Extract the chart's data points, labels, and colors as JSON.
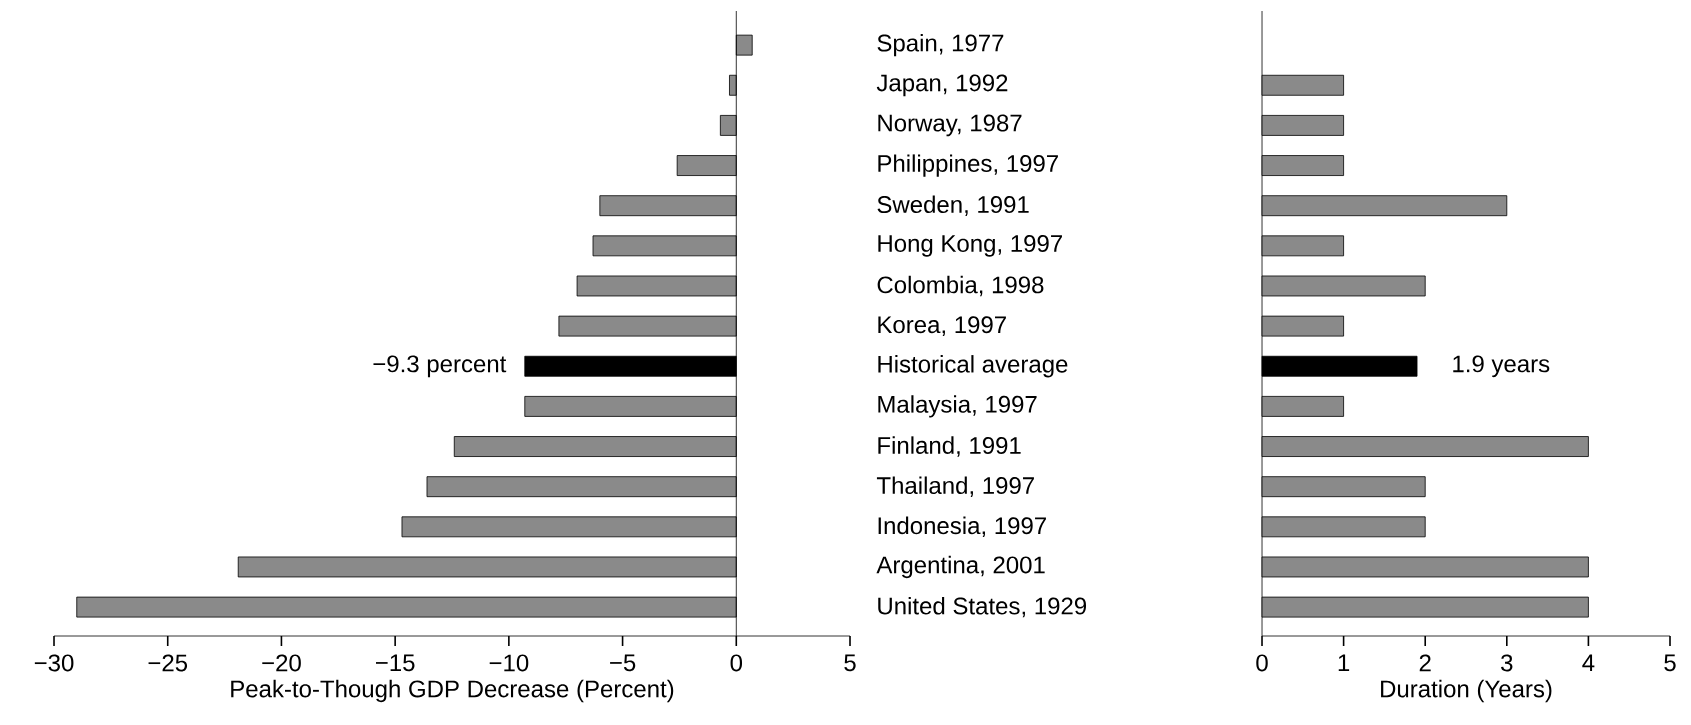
{
  "chart_data": [
    {
      "type": "bar",
      "orientation": "horizontal",
      "xlabel": "Peak-to-Though GDP Decrease (Percent)",
      "categories": [
        "Spain, 1977",
        "Japan, 1992",
        "Norway, 1987",
        "Philippines, 1997",
        "Sweden, 1991",
        "Hong Kong, 1997",
        "Colombia, 1998",
        "Korea, 1997",
        "Historical average",
        "Malaysia, 1997",
        "Finland, 1991",
        "Thailand, 1997",
        "Indonesia, 1997",
        "Argentina, 2001",
        "United States, 1929"
      ],
      "values": [
        0.7,
        -0.3,
        -0.7,
        -2.6,
        -6.0,
        -6.3,
        -7.0,
        -7.8,
        -9.3,
        -9.3,
        -12.4,
        -13.6,
        -14.7,
        -21.9,
        -29.0
      ],
      "colors": [
        "#8a8a8a",
        "#8a8a8a",
        "#8a8a8a",
        "#8a8a8a",
        "#8a8a8a",
        "#8a8a8a",
        "#8a8a8a",
        "#8a8a8a",
        "#000000",
        "#8a8a8a",
        "#8a8a8a",
        "#8a8a8a",
        "#8a8a8a",
        "#8a8a8a",
        "#8a8a8a"
      ],
      "value_labels": [
        null,
        null,
        null,
        null,
        null,
        null,
        null,
        null,
        "−9.3 percent",
        null,
        null,
        null,
        null,
        null,
        null
      ],
      "xlim": [
        -30,
        5
      ],
      "xticks": [
        {
          "value": -30,
          "label": "−30"
        },
        {
          "value": -25,
          "label": "−25"
        },
        {
          "value": -20,
          "label": "−20"
        },
        {
          "value": -15,
          "label": "−15"
        },
        {
          "value": -10,
          "label": "−10"
        },
        {
          "value": -5,
          "label": "−5"
        },
        0,
        5
      ],
      "ref_lines": [
        {
          "axis": "x",
          "value": 0
        }
      ]
    },
    {
      "type": "bar",
      "orientation": "horizontal",
      "xlabel": "Duration (Years)",
      "tick_labels": "x",
      "categories": [
        null,
        null,
        null,
        null,
        null,
        null,
        null,
        null,
        null,
        null,
        null,
        null,
        null,
        null,
        null
      ],
      "values": [
        null,
        1,
        1,
        1,
        3,
        1,
        2,
        1,
        1.9,
        1,
        4,
        2,
        2,
        4,
        4
      ],
      "colors": [
        "#8a8a8a",
        "#8a8a8a",
        "#8a8a8a",
        "#8a8a8a",
        "#8a8a8a",
        "#8a8a8a",
        "#8a8a8a",
        "#8a8a8a",
        "#000000",
        "#8a8a8a",
        "#8a8a8a",
        "#8a8a8a",
        "#8a8a8a",
        "#8a8a8a",
        "#8a8a8a"
      ],
      "value_labels": [
        null,
        null,
        null,
        null,
        null,
        null,
        null,
        null,
        "1.9 years",
        null,
        null,
        null,
        null,
        null,
        null
      ],
      "xlim": [
        0,
        5
      ],
      "xticks": [
        0,
        1,
        2,
        3,
        4,
        5
      ]
    }
  ]
}
